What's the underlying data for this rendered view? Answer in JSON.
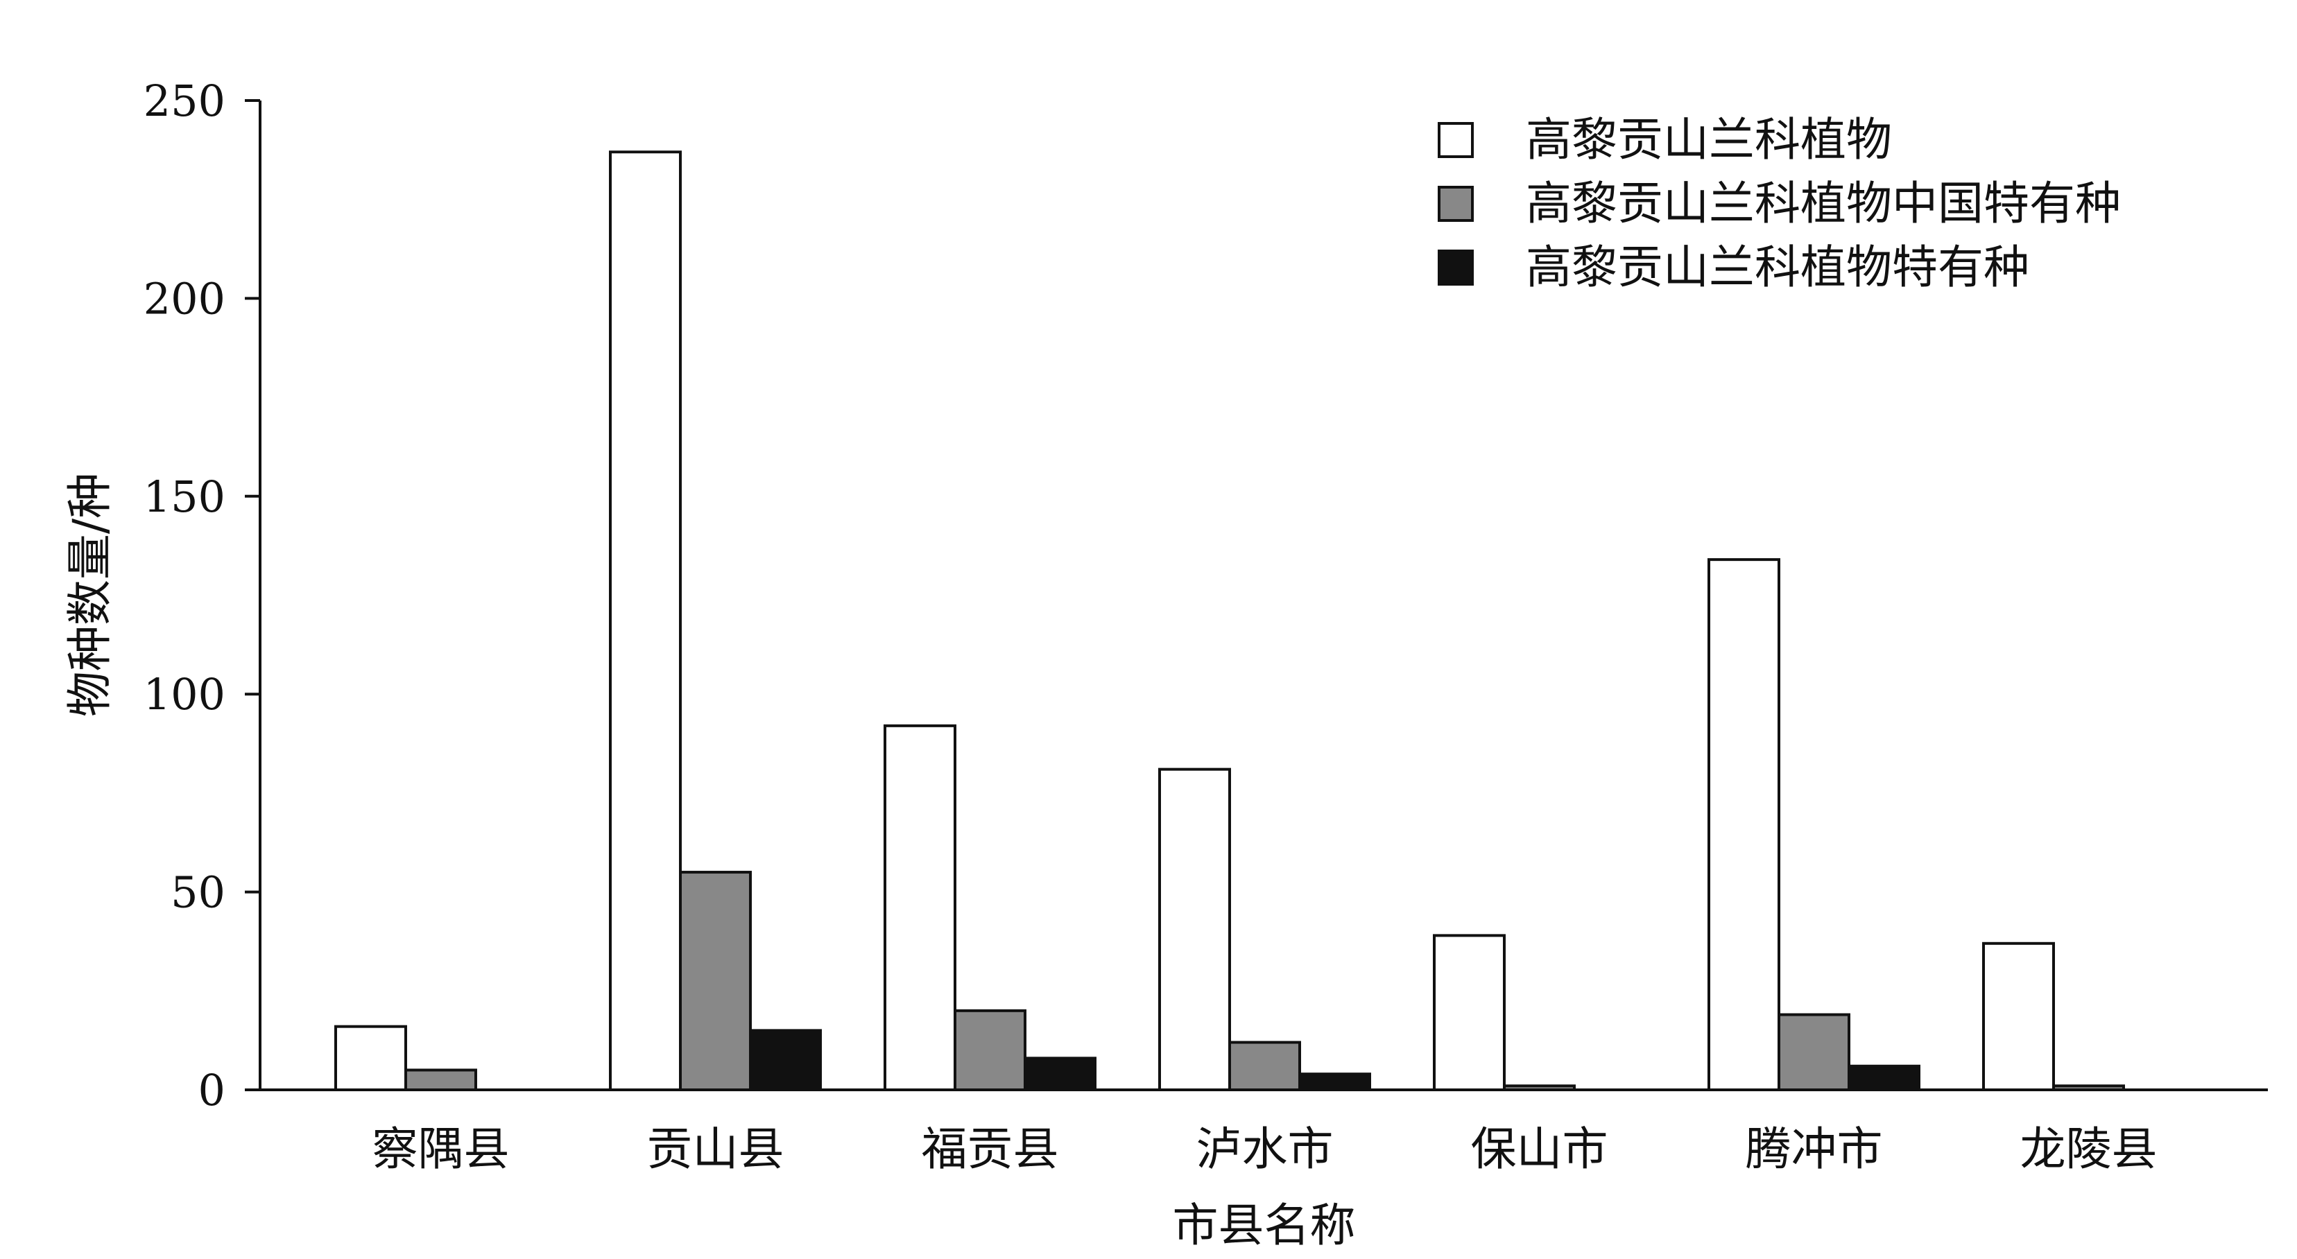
{
  "chart_data": {
    "type": "bar",
    "categories": [
      "察隅县",
      "贡山县",
      "福贡县",
      "泸水市",
      "保山市",
      "腾冲市",
      "龙陵县"
    ],
    "series": [
      {
        "name": "高黎贡山兰科植物",
        "color": "#ffffff",
        "values": [
          16,
          237,
          92,
          81,
          39,
          134,
          37
        ]
      },
      {
        "name": "高黎贡山兰科植物中国特有种",
        "color": "#888888",
        "values": [
          5,
          55,
          20,
          12,
          1,
          19,
          1
        ]
      },
      {
        "name": "高黎贡山兰科植物特有种",
        "color": "#111111",
        "values": [
          0,
          15,
          8,
          4,
          0,
          6,
          0
        ]
      }
    ],
    "xlabel": "市县名称",
    "ylabel": "物种数量/种",
    "ylim": [
      0,
      250
    ],
    "yticks": [
      0,
      50,
      100,
      150,
      200,
      250
    ],
    "grid": false,
    "legend_position": "top-right"
  }
}
